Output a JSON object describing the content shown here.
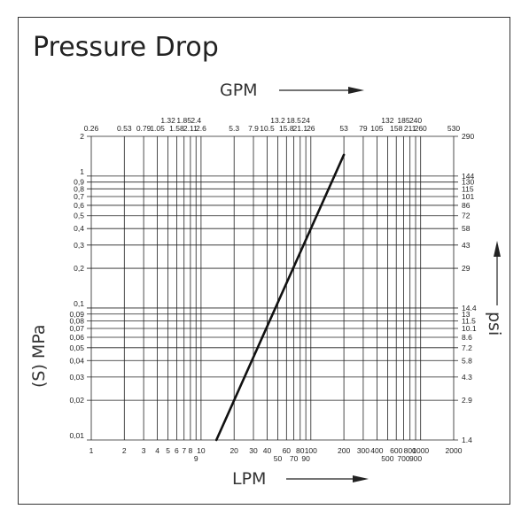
{
  "title": "Pressure Drop",
  "chart_data": {
    "type": "line",
    "title": "Pressure Drop",
    "xlabel_bottom": "LPM",
    "xlabel_top": "GPM",
    "ylabel_left": "(S) MPa",
    "ylabel_right": "psi",
    "xscale": "log",
    "yscale": "log",
    "xlim": [
      1,
      2000
    ],
    "ylim": [
      0.01,
      2
    ],
    "grid": true,
    "x_ticks_bottom": [
      {
        "v": 1,
        "t": "1"
      },
      {
        "v": 2,
        "t": "2"
      },
      {
        "v": 3,
        "t": "3"
      },
      {
        "v": 4,
        "t": "4"
      },
      {
        "v": 5,
        "t": "5"
      },
      {
        "v": 6,
        "t": "6"
      },
      {
        "v": 7,
        "t": "7"
      },
      {
        "v": 8,
        "t": "8"
      },
      {
        "v": 9,
        "t": "9"
      },
      {
        "v": 10,
        "t": "10"
      },
      {
        "v": 20,
        "t": "20"
      },
      {
        "v": 30,
        "t": "30"
      },
      {
        "v": 40,
        "t": "40"
      },
      {
        "v": 50,
        "t": "50"
      },
      {
        "v": 60,
        "t": "60"
      },
      {
        "v": 70,
        "t": "70"
      },
      {
        "v": 80,
        "t": "80"
      },
      {
        "v": 90,
        "t": "90"
      },
      {
        "v": 100,
        "t": "100"
      },
      {
        "v": 200,
        "t": "200"
      },
      {
        "v": 300,
        "t": "300"
      },
      {
        "v": 400,
        "t": "400"
      },
      {
        "v": 500,
        "t": "500"
      },
      {
        "v": 600,
        "t": "600"
      },
      {
        "v": 700,
        "t": "700"
      },
      {
        "v": 800,
        "t": "800"
      },
      {
        "v": 900,
        "t": "900"
      },
      {
        "v": 1000,
        "t": "1000"
      },
      {
        "v": 2000,
        "t": "2000"
      }
    ],
    "x_ticks_top": [
      {
        "v": 1,
        "t": "0.26"
      },
      {
        "v": 2,
        "t": "0.53"
      },
      {
        "v": 3,
        "t": "0.79"
      },
      {
        "v": 4,
        "t": "1.05"
      },
      {
        "v": 5,
        "t": "1.32"
      },
      {
        "v": 6,
        "t": "1.58"
      },
      {
        "v": 7,
        "t": "1.85"
      },
      {
        "v": 8,
        "t": "2.11"
      },
      {
        "v": 9,
        "t": "2.4"
      },
      {
        "v": 10,
        "t": "2.6"
      },
      {
        "v": 20,
        "t": "5.3"
      },
      {
        "v": 30,
        "t": "7.9"
      },
      {
        "v": 40,
        "t": "10.5"
      },
      {
        "v": 50,
        "t": "13.2"
      },
      {
        "v": 60,
        "t": "15.8"
      },
      {
        "v": 70,
        "t": "18.5"
      },
      {
        "v": 80,
        "t": "21.1"
      },
      {
        "v": 90,
        "t": "24"
      },
      {
        "v": 100,
        "t": "26"
      },
      {
        "v": 200,
        "t": "53"
      },
      {
        "v": 300,
        "t": "79"
      },
      {
        "v": 400,
        "t": "105"
      },
      {
        "v": 500,
        "t": "132"
      },
      {
        "v": 600,
        "t": "158"
      },
      {
        "v": 700,
        "t": "185"
      },
      {
        "v": 800,
        "t": "211"
      },
      {
        "v": 900,
        "t": "240"
      },
      {
        "v": 1000,
        "t": "260"
      },
      {
        "v": 2000,
        "t": "530"
      }
    ],
    "y_ticks_left": [
      {
        "v": 0.01,
        "t": "0,01"
      },
      {
        "v": 0.02,
        "t": "0,02"
      },
      {
        "v": 0.03,
        "t": "0,03"
      },
      {
        "v": 0.04,
        "t": "0,04"
      },
      {
        "v": 0.05,
        "t": "0,05"
      },
      {
        "v": 0.06,
        "t": "0,06"
      },
      {
        "v": 0.07,
        "t": "0,07"
      },
      {
        "v": 0.08,
        "t": "0,08"
      },
      {
        "v": 0.09,
        "t": "0,09"
      },
      {
        "v": 0.1,
        "t": "0,1"
      },
      {
        "v": 0.2,
        "t": "0,2"
      },
      {
        "v": 0.3,
        "t": "0,3"
      },
      {
        "v": 0.4,
        "t": "0,4"
      },
      {
        "v": 0.5,
        "t": "0,5"
      },
      {
        "v": 0.6,
        "t": "0,6"
      },
      {
        "v": 0.7,
        "t": "0,7"
      },
      {
        "v": 0.8,
        "t": "0,8"
      },
      {
        "v": 0.9,
        "t": "0,9"
      },
      {
        "v": 1,
        "t": "1"
      },
      {
        "v": 2,
        "t": "2"
      }
    ],
    "y_ticks_right": [
      {
        "v": 0.01,
        "t": "1.4"
      },
      {
        "v": 0.02,
        "t": "2.9"
      },
      {
        "v": 0.03,
        "t": "4.3"
      },
      {
        "v": 0.04,
        "t": "5.8"
      },
      {
        "v": 0.05,
        "t": "7.2"
      },
      {
        "v": 0.06,
        "t": "8.6"
      },
      {
        "v": 0.07,
        "t": "10.1"
      },
      {
        "v": 0.08,
        "t": "11.5"
      },
      {
        "v": 0.09,
        "t": "13"
      },
      {
        "v": 0.1,
        "t": "14.4"
      },
      {
        "v": 0.2,
        "t": "29"
      },
      {
        "v": 0.3,
        "t": "43"
      },
      {
        "v": 0.4,
        "t": "58"
      },
      {
        "v": 0.5,
        "t": "72"
      },
      {
        "v": 0.6,
        "t": "86"
      },
      {
        "v": 0.7,
        "t": "101"
      },
      {
        "v": 0.8,
        "t": "115"
      },
      {
        "v": 0.9,
        "t": "130"
      },
      {
        "v": 1,
        "t": "144"
      },
      {
        "v": 2,
        "t": "290"
      }
    ],
    "series": [
      {
        "x": [
          13.8,
          200
        ],
        "y": [
          0.01,
          1.45
        ]
      }
    ],
    "line_color": "#111111",
    "grid_color": "#222222"
  }
}
